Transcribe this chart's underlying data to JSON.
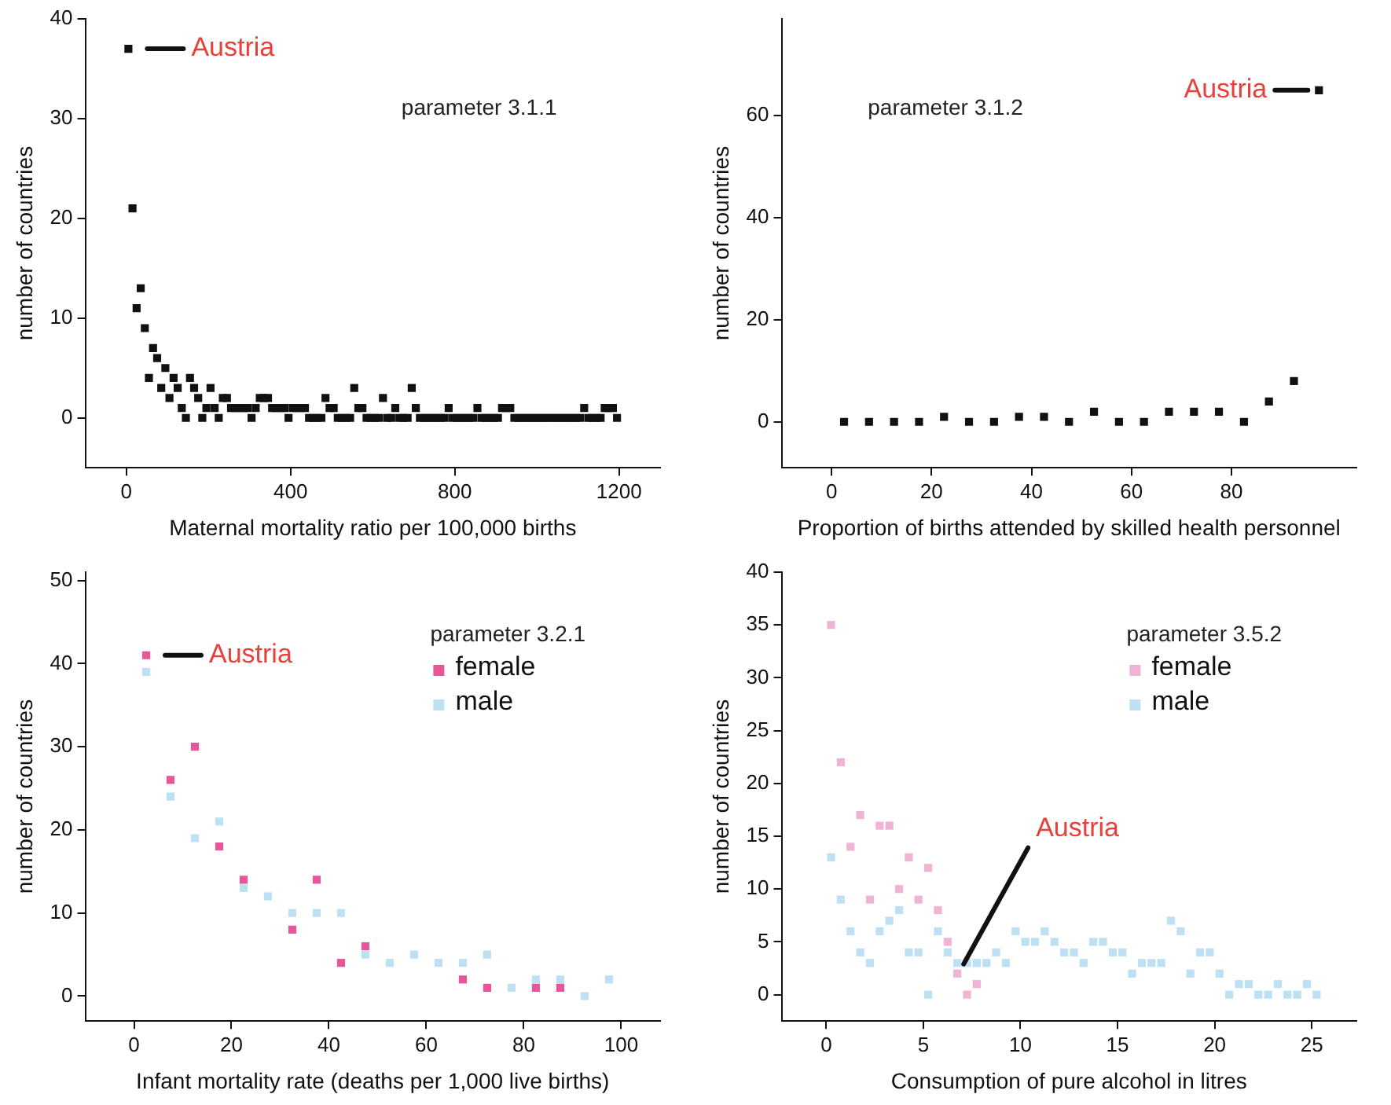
{
  "chart_data": [
    {
      "type": "scatter",
      "xlabel": "Maternal mortality ratio per 100,000 births",
      "ylabel": "number of countries",
      "xlim": [
        -100,
        1300
      ],
      "xticks": [
        0,
        400,
        800,
        1200
      ],
      "ylim": [
        -5,
        40
      ],
      "yticks": [
        0,
        10,
        20,
        30,
        40
      ],
      "marker": "square",
      "series": [
        {
          "color": "#111111",
          "x": [
            5,
            15,
            25,
            35,
            45,
            55,
            65,
            75,
            85,
            95,
            105,
            115,
            125,
            135,
            145,
            155,
            165,
            175,
            185,
            195,
            205,
            215,
            225,
            235,
            245,
            255,
            265,
            275,
            285,
            295,
            305,
            315,
            325,
            335,
            345,
            355,
            365,
            375,
            385,
            395,
            405,
            415,
            425,
            435,
            445,
            455,
            465,
            475,
            485,
            495,
            505,
            515,
            525,
            535,
            545,
            555,
            565,
            575,
            585,
            595,
            605,
            615,
            625,
            635,
            645,
            655,
            665,
            675,
            685,
            695,
            705,
            715,
            725,
            735,
            745,
            755,
            765,
            775,
            785,
            795,
            805,
            815,
            825,
            835,
            845,
            855,
            865,
            875,
            885,
            895,
            905,
            915,
            925,
            935,
            945,
            955,
            965,
            975,
            985,
            995,
            1005,
            1015,
            1025,
            1035,
            1045,
            1055,
            1065,
            1075,
            1085,
            1095,
            1105,
            1115,
            1125,
            1135,
            1145,
            1155,
            1165,
            1175,
            1185,
            1195
          ],
          "values": [
            37,
            21,
            11,
            13,
            9,
            4,
            7,
            6,
            3,
            5,
            2,
            4,
            3,
            1,
            0,
            4,
            3,
            2,
            0,
            1,
            3,
            1,
            0,
            2,
            2,
            1,
            1,
            1,
            1,
            1,
            0,
            1,
            2,
            2,
            2,
            1,
            1,
            1,
            1,
            0,
            1,
            1,
            1,
            1,
            0,
            0,
            0,
            0,
            2,
            1,
            1,
            0,
            0,
            0,
            0,
            3,
            1,
            1,
            0,
            0,
            0,
            0,
            2,
            0,
            0,
            1,
            0,
            0,
            0,
            3,
            1,
            0,
            0,
            0,
            0,
            0,
            0,
            0,
            1,
            0,
            0,
            0,
            0,
            0,
            0,
            1,
            0,
            0,
            0,
            0,
            0,
            1,
            1,
            1,
            0,
            0,
            0,
            0,
            0,
            0,
            0,
            0,
            0,
            0,
            0,
            0,
            0,
            0,
            0,
            0,
            0,
            1,
            0,
            0,
            0,
            0,
            1,
            1,
            1,
            0
          ]
        }
      ],
      "annotations": [
        {
          "text": "Austria",
          "x": 5,
          "y": 37
        },
        "parameter 3.1.1"
      ]
    },
    {
      "type": "scatter",
      "xlabel": "Proportion of births attended by skilled health personnel",
      "ylabel": "number of countries",
      "xlim": [
        -10,
        105
      ],
      "xticks": [
        0,
        20,
        40,
        60,
        80
      ],
      "ylim": [
        -9,
        79
      ],
      "yticks": [
        0,
        20,
        40,
        60
      ],
      "marker": "square",
      "series": [
        {
          "color": "#111111",
          "x": [
            2.5,
            7.5,
            12.5,
            17.5,
            22.5,
            27.5,
            32.5,
            37.5,
            42.5,
            47.5,
            52.5,
            57.5,
            62.5,
            67.5,
            72.5,
            77.5,
            82.5,
            87.5,
            92.5,
            97.5
          ],
          "values": [
            0,
            0,
            0,
            0,
            1,
            0,
            0,
            1,
            1,
            0,
            2,
            0,
            0,
            2,
            2,
            2,
            0,
            4,
            8,
            65
          ]
        }
      ],
      "annotations": [
        {
          "text": "Austria",
          "x": 97.5,
          "y": 65
        },
        "parameter 3.1.2"
      ]
    },
    {
      "type": "scatter",
      "xlabel": "Infant mortality rate (deaths per 1,000 live births)",
      "ylabel": "number of countries",
      "xlim": [
        -10,
        108
      ],
      "xticks": [
        0,
        20,
        40,
        60,
        80,
        100
      ],
      "ylim": [
        -3,
        51
      ],
      "yticks": [
        0,
        10,
        20,
        30,
        40,
        50
      ],
      "marker": "square",
      "legend": "top right",
      "legend_title": "parameter 3.2.1",
      "series": [
        {
          "name": "female",
          "color": "#e8559a",
          "x": [
            2.5,
            7.5,
            12.5,
            17.5,
            22.5,
            32.5,
            37.5,
            42.5,
            47.5,
            67.5,
            72.5,
            82.5,
            87.5
          ],
          "values": [
            41,
            26,
            30,
            18,
            14,
            8,
            14,
            4,
            6,
            2,
            1,
            1,
            1
          ]
        },
        {
          "name": "male",
          "color": "#bde0f2",
          "x": [
            2.5,
            7.5,
            12.5,
            17.5,
            22.5,
            27.5,
            32.5,
            37.5,
            42.5,
            47.5,
            52.5,
            57.5,
            62.5,
            67.5,
            72.5,
            77.5,
            82.5,
            87.5,
            92.5,
            97.5
          ],
          "values": [
            39,
            24,
            19,
            21,
            13,
            12,
            10,
            10,
            10,
            5,
            4,
            5,
            4,
            4,
            5,
            1,
            2,
            2,
            0,
            2
          ]
        }
      ],
      "annotations": [
        {
          "text": "Austria",
          "x": 2.5,
          "y": 41
        }
      ]
    },
    {
      "type": "scatter",
      "xlabel": "Consumption of pure alcohol in litres",
      "ylabel": "number of countries",
      "xlim": [
        -2.3,
        27.3
      ],
      "xticks": [
        0,
        5,
        10,
        15,
        20,
        25
      ],
      "ylim": [
        -2.5,
        40
      ],
      "yticks": [
        0,
        5,
        10,
        15,
        20,
        25,
        30,
        35,
        40
      ],
      "marker": "square",
      "legend": "top right",
      "legend_title": "parameter 3.5.2",
      "series": [
        {
          "name": "female",
          "color": "#f0b3d3",
          "x": [
            0.25,
            0.75,
            1.25,
            1.75,
            2.25,
            2.75,
            3.25,
            3.75,
            4.25,
            4.75,
            5.25,
            5.75,
            6.25,
            6.75,
            7.25,
            7.75
          ],
          "values": [
            35,
            22,
            14,
            17,
            9,
            16,
            16,
            10,
            13,
            9,
            12,
            8,
            5,
            2,
            0,
            1
          ]
        },
        {
          "name": "male",
          "color": "#bde0f2",
          "x": [
            0.25,
            0.75,
            1.25,
            1.75,
            2.25,
            2.75,
            3.25,
            3.75,
            4.25,
            4.75,
            5.25,
            5.75,
            6.25,
            6.75,
            7.25,
            7.75,
            8.25,
            8.75,
            9.25,
            9.75,
            10.25,
            10.75,
            11.25,
            11.75,
            12.25,
            12.75,
            13.25,
            13.75,
            14.25,
            14.75,
            15.25,
            15.75,
            16.25,
            16.75,
            17.25,
            17.75,
            18.25,
            18.75,
            19.25,
            19.75,
            20.25,
            20.75,
            21.25,
            21.75,
            22.25,
            22.75,
            23.25,
            23.75,
            24.25,
            24.75,
            25.25
          ],
          "values": [
            13,
            9,
            6,
            4,
            3,
            6,
            7,
            8,
            4,
            4,
            0,
            6,
            4,
            3,
            3,
            3,
            3,
            4,
            3,
            6,
            5,
            5,
            6,
            5,
            4,
            4,
            3,
            5,
            5,
            4,
            4,
            2,
            3,
            3,
            3,
            7,
            6,
            2,
            4,
            4,
            2,
            0,
            1,
            1,
            0,
            0,
            1,
            0,
            0,
            1,
            0
          ]
        }
      ],
      "annotations": [
        {
          "text": "Austria",
          "x": 6.75,
          "y": 2
        }
      ]
    }
  ]
}
